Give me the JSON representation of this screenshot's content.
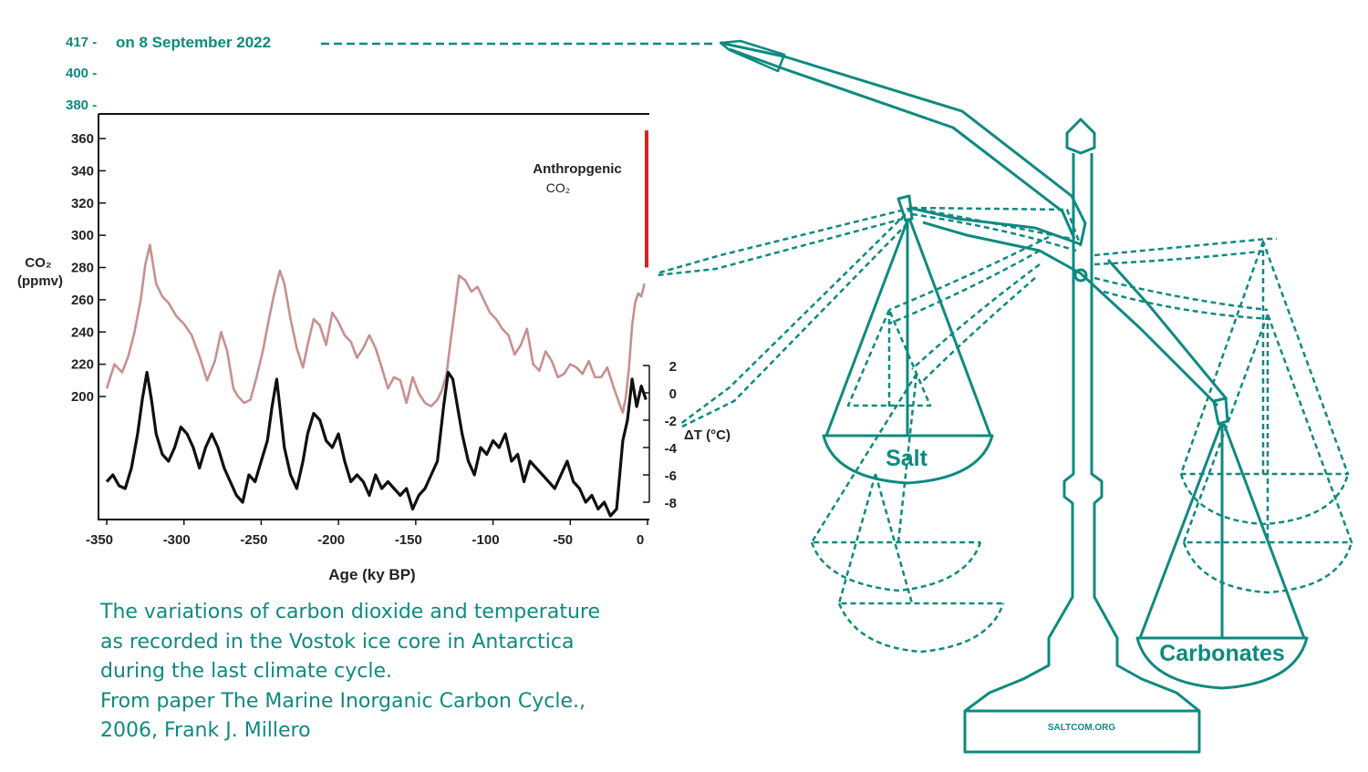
{
  "extension": {
    "ticks": [
      "417 -",
      "400 -",
      "380 -"
    ],
    "current_label": "on 8 September 2022"
  },
  "chart_data": {
    "type": "line",
    "xlabel": "Age (ky BP)",
    "x_ticks": [
      -350,
      -300,
      -250,
      -200,
      -150,
      -100,
      -50,
      0
    ],
    "xlim": [
      -350,
      0
    ],
    "ylabel_left": "CO₂ (ppmv)",
    "y_ticks_left": [
      200,
      220,
      240,
      260,
      280,
      300,
      320,
      340,
      360
    ],
    "ylim_left": [
      180,
      370
    ],
    "ylabel_right": "ΔT (°C)",
    "y_ticks_right": [
      2,
      0,
      -2,
      -4,
      -6,
      -8
    ],
    "annotation": "Anthropgenic CO₂",
    "annotation_bar": {
      "x": 0,
      "from": 280,
      "to": 365,
      "color": "#e02020"
    },
    "series": [
      {
        "color": "#c89090",
        "x": [
          -350,
          -345,
          -340,
          -336,
          -332,
          -328,
          -325,
          -322,
          -318,
          -314,
          -310,
          -305,
          -300,
          -295,
          -290,
          -285,
          -280,
          -276,
          -272,
          -268,
          -265,
          -261,
          -257,
          -253,
          -249,
          -245,
          -242,
          -238,
          -235,
          -231,
          -227,
          -223,
          -220,
          -216,
          -212,
          -208,
          -204,
          -200,
          -196,
          -192,
          -188,
          -184,
          -180,
          -176,
          -172,
          -168,
          -164,
          -160,
          -156,
          -152,
          -148,
          -144,
          -140,
          -136,
          -133,
          -130,
          -128,
          -125,
          -122,
          -118,
          -114,
          -110,
          -106,
          -102,
          -98,
          -94,
          -90,
          -86,
          -82,
          -78,
          -74,
          -70,
          -66,
          -62,
          -58,
          -54,
          -50,
          -46,
          -42,
          -38,
          -34,
          -30,
          -26,
          -22,
          -18,
          -16,
          -14,
          -12,
          -10,
          -8,
          -6,
          -4,
          -2
        ],
        "values": [
          205,
          220,
          215,
          225,
          240,
          260,
          282,
          294,
          270,
          262,
          258,
          250,
          245,
          238,
          225,
          210,
          222,
          240,
          228,
          205,
          200,
          196,
          198,
          212,
          228,
          248,
          262,
          278,
          270,
          248,
          230,
          218,
          232,
          248,
          244,
          232,
          252,
          246,
          238,
          234,
          224,
          230,
          238,
          230,
          218,
          205,
          212,
          210,
          196,
          212,
          202,
          196,
          194,
          198,
          204,
          214,
          230,
          252,
          275,
          272,
          265,
          268,
          260,
          252,
          248,
          242,
          238,
          226,
          232,
          242,
          220,
          216,
          228,
          222,
          212,
          214,
          220,
          218,
          214,
          222,
          212,
          212,
          218,
          206,
          195,
          190,
          200,
          218,
          244,
          258,
          264,
          262,
          270
        ]
      },
      {
        "color": "#101010",
        "x": [
          -350,
          -346,
          -342,
          -338,
          -334,
          -330,
          -327,
          -324,
          -321,
          -318,
          -314,
          -310,
          -306,
          -302,
          -298,
          -294,
          -290,
          -286,
          -282,
          -278,
          -274,
          -270,
          -266,
          -262,
          -258,
          -254,
          -250,
          -246,
          -243,
          -240,
          -238,
          -235,
          -231,
          -227,
          -223,
          -220,
          -216,
          -212,
          -208,
          -204,
          -200,
          -196,
          -192,
          -188,
          -184,
          -180,
          -176,
          -172,
          -168,
          -164,
          -160,
          -156,
          -152,
          -148,
          -144,
          -140,
          -136,
          -132,
          -129,
          -126,
          -123,
          -120,
          -116,
          -112,
          -108,
          -104,
          -100,
          -96,
          -92,
          -88,
          -84,
          -80,
          -76,
          -72,
          -68,
          -64,
          -60,
          -56,
          -52,
          -48,
          -44,
          -40,
          -36,
          -32,
          -28,
          -24,
          -20,
          -18,
          -16,
          -13,
          -10,
          -7,
          -4,
          -1
        ],
        "values": [
          -6.5,
          -6.0,
          -6.8,
          -7.0,
          -5.5,
          -3.0,
          -0.5,
          1.5,
          -0.5,
          -3.0,
          -4.5,
          -5.0,
          -4.0,
          -2.5,
          -3.0,
          -4.0,
          -5.5,
          -4.0,
          -3.0,
          -4.0,
          -5.5,
          -6.5,
          -7.5,
          -8.0,
          -6.0,
          -6.5,
          -5.0,
          -3.5,
          -1.0,
          1.0,
          -1.0,
          -4.0,
          -6.0,
          -7.0,
          -5.0,
          -3.0,
          -1.5,
          -2.0,
          -3.5,
          -4.0,
          -3.0,
          -5.0,
          -6.5,
          -6.0,
          -6.5,
          -7.5,
          -6.0,
          -7.0,
          -6.5,
          -7.0,
          -7.5,
          -7.0,
          -8.5,
          -7.5,
          -7.0,
          -6.0,
          -5.0,
          -1.0,
          1.5,
          1.0,
          -1.0,
          -3.0,
          -5.0,
          -6.0,
          -4.0,
          -4.5,
          -3.5,
          -4.0,
          -3.0,
          -5.0,
          -4.5,
          -6.5,
          -5.0,
          -5.5,
          -6.0,
          -6.5,
          -7.0,
          -6.0,
          -5.0,
          -6.5,
          -7.0,
          -8.0,
          -7.5,
          -8.5,
          -8.0,
          -9.0,
          -8.5,
          -6.0,
          -3.5,
          -2.0,
          1.0,
          -1.0,
          0.5,
          -0.5
        ]
      }
    ]
  },
  "caption": {
    "lines": [
      "The variations of carbon dioxide and temperature",
      "as recorded in the Vostok ice core in Antarctica",
      "during the last climate cycle.",
      "From paper The Marine Inorganic Carbon Cycle.,",
      "2006, Frank J. Millero"
    ]
  },
  "scale": {
    "left_pan": "Salt",
    "right_pan": "Carbonates",
    "base_text": "SALTCOM.ORG"
  },
  "colors": {
    "teal": "#0e8a80",
    "co2_line": "#c89090",
    "temp_line": "#101010",
    "anthropogenic": "#e02020"
  }
}
